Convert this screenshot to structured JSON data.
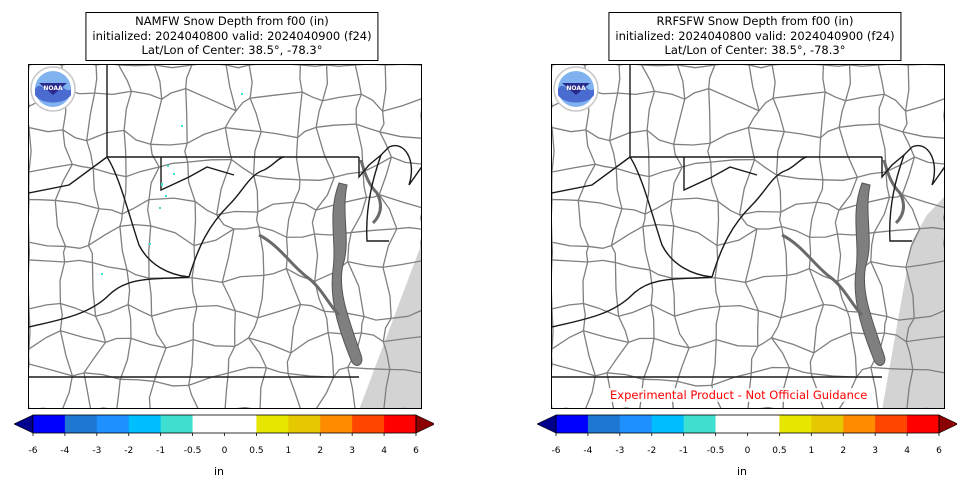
{
  "panels": [
    {
      "title_lines": [
        "NAMFW Snow Depth from f00 (in)",
        "initialized: 2024040800 valid: 2024040900 (f24)",
        "Lat/Lon of Center: 38.5°, -78.3°"
      ],
      "logo_text": "NOAA",
      "annotation": ""
    },
    {
      "title_lines": [
        "RRFSFW Snow Depth from f00 (in)",
        "initialized: 2024040800 valid: 2024040900 (f24)",
        "Lat/Lon of Center: 38.5°, -78.3°"
      ],
      "logo_text": "NOAA",
      "annotation": "Experimental Product - Not Official Guidance"
    }
  ],
  "colorbar": {
    "unit": "in",
    "ticks": [
      "-6",
      "-4",
      "-3",
      "-2",
      "-1",
      "-0.5",
      "0",
      "0.5",
      "1",
      "2",
      "3",
      "4",
      "6"
    ],
    "under_color": "#00008b",
    "over_color": "#8b0000",
    "colors": [
      "#0000ff",
      "#1e78d2",
      "#1e90ff",
      "#00bfff",
      "#40e0d0",
      "#ffffff",
      "#ffffff",
      "#e6e600",
      "#e6c800",
      "#ff8c00",
      "#ff4500",
      "#ff0000"
    ]
  },
  "colors": {
    "county_line": "#7f7f7f",
    "state_line": "#1a1a1a",
    "ocean": "#d3d3d3",
    "snow_trace": "#40e0d0"
  }
}
